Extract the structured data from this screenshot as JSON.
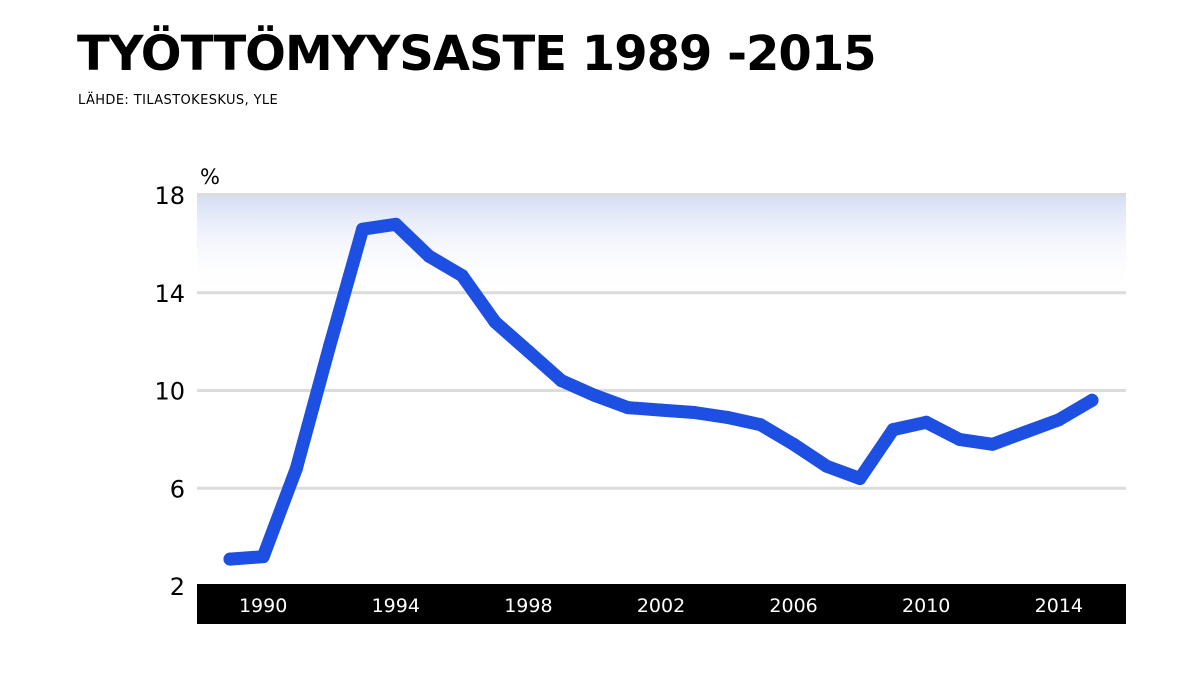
{
  "header": {
    "title": "TYÖTTÖMYYSASTE 1989 -2015",
    "source": "LÄHDE: TILASTOKESKUS, YLE"
  },
  "chart_data": {
    "type": "line",
    "title": "TYÖTTÖMYYSASTE 1989 -2015",
    "ylabel": "%",
    "xlabel": "",
    "ylim": [
      2,
      18
    ],
    "yticks": [
      2,
      6,
      10,
      14,
      18
    ],
    "xlim": [
      1989,
      2015
    ],
    "xticks": [
      1990,
      1994,
      1998,
      2002,
      2006,
      2010,
      2014
    ],
    "grid": true,
    "x": [
      1989,
      1990,
      1991,
      1992,
      1993,
      1994,
      1995,
      1996,
      1997,
      1998,
      1999,
      2000,
      2001,
      2002,
      2003,
      2004,
      2005,
      2006,
      2007,
      2008,
      2009,
      2010,
      2011,
      2012,
      2013,
      2014,
      2015
    ],
    "series": [
      {
        "values": [
          3.1,
          3.2,
          6.8,
          11.8,
          16.6,
          16.8,
          15.5,
          14.7,
          12.8,
          11.6,
          10.4,
          9.8,
          9.3,
          9.2,
          9.1,
          8.9,
          8.6,
          7.8,
          6.9,
          6.4,
          8.4,
          8.7,
          8.0,
          7.8,
          8.3,
          8.8,
          9.6
        ]
      }
    ],
    "colors": {
      "line": "#1c4fe2",
      "axis_band": "#000000",
      "grid": "#dcdcdc",
      "top_shade": "#dbe3f7"
    }
  }
}
